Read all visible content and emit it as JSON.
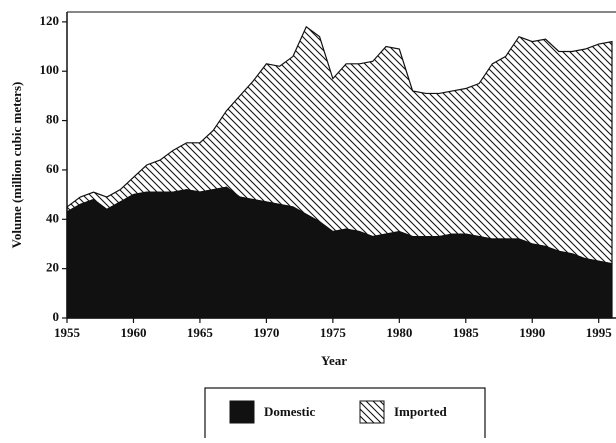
{
  "chart_data": {
    "type": "stacked_area",
    "xlabel": "Year",
    "ylabel": "Volume (million cubic meters)",
    "x": [
      1955,
      1956,
      1957,
      1958,
      1959,
      1960,
      1961,
      1962,
      1963,
      1964,
      1965,
      1966,
      1967,
      1968,
      1969,
      1970,
      1971,
      1972,
      1973,
      1974,
      1975,
      1976,
      1977,
      1978,
      1979,
      1980,
      1981,
      1982,
      1983,
      1984,
      1985,
      1986,
      1987,
      1988,
      1989,
      1990,
      1991,
      1992,
      1993,
      1994,
      1995,
      1996
    ],
    "series": [
      {
        "name": "Domestic",
        "color": "#111111",
        "fill": "solid",
        "values": [
          43,
          46,
          48,
          44,
          47,
          50,
          51,
          51,
          51,
          52,
          51,
          52,
          53,
          49,
          48,
          47,
          46,
          45,
          42,
          39,
          35,
          36,
          35,
          33,
          34,
          35,
          33,
          33,
          33,
          34,
          34,
          33,
          32,
          32,
          32,
          30,
          29,
          27,
          26,
          24,
          23,
          22
        ]
      },
      {
        "name": "Imported",
        "color": "#111111",
        "fill": "hatch",
        "values": [
          2,
          3,
          3,
          5,
          5,
          7,
          11,
          13,
          17,
          19,
          20,
          24,
          31,
          41,
          48,
          56,
          56,
          61,
          76,
          75,
          62,
          67,
          68,
          71,
          76,
          74,
          59,
          58,
          58,
          58,
          59,
          62,
          71,
          74,
          82,
          82,
          84,
          81,
          82,
          85,
          88,
          90
        ]
      }
    ],
    "xlim": [
      1955,
      1996
    ],
    "xticks": [
      1955,
      1960,
      1965,
      1970,
      1975,
      1980,
      1985,
      1990,
      1995
    ],
    "ylim": [
      0,
      124
    ],
    "yticks": [
      0,
      20,
      40,
      60,
      80,
      100,
      120
    ],
    "legend": "bottom"
  }
}
